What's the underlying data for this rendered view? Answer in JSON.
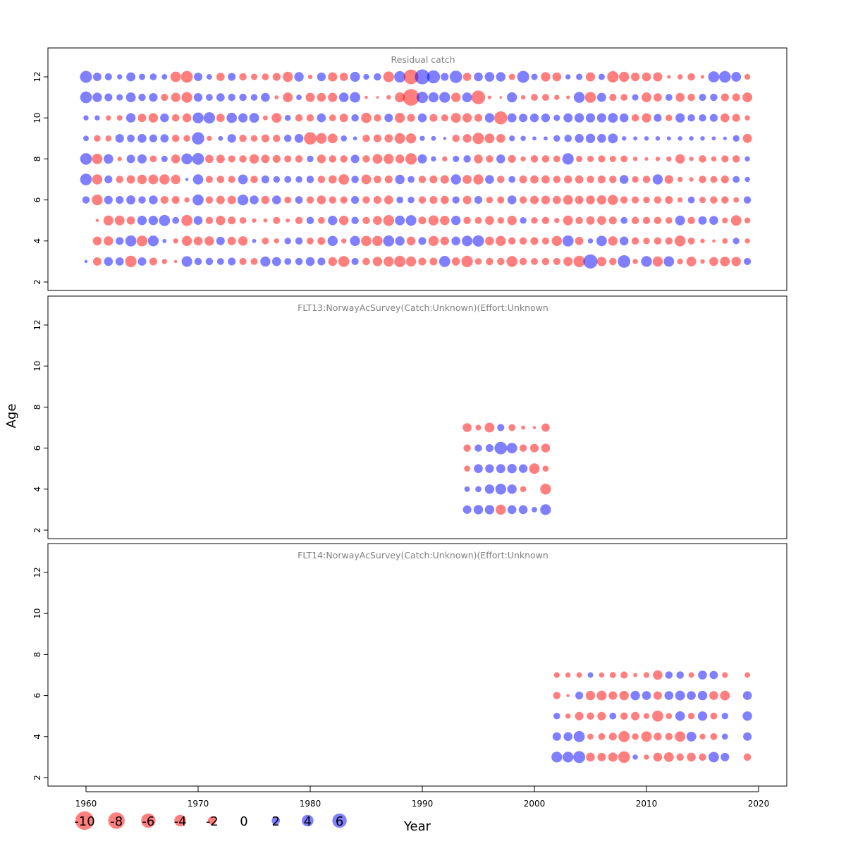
{
  "chart_data": {
    "type": "scatter",
    "xlabel": "Year",
    "ylabel": "Age",
    "xlim": [
      1956.5,
      2022.5
    ],
    "ylim": [
      1.5,
      13.3
    ],
    "xticks": [
      1960,
      1970,
      1980,
      1990,
      2000,
      2010,
      2020
    ],
    "yticks": [
      2,
      4,
      6,
      8,
      10,
      12
    ],
    "colors": {
      "negative": "#ff0000",
      "positive": "#0000ff",
      "opacity": 0.5
    },
    "legend": {
      "position": "bottom-left",
      "values": [
        -10,
        -8,
        -6,
        -4,
        -2,
        0,
        2,
        4,
        6
      ],
      "labels": [
        "-10",
        "-8",
        "-6",
        "-4",
        "-2",
        "0",
        "2",
        "4",
        "6"
      ]
    },
    "panels": [
      {
        "title": "Residual catch",
        "years": [
          1960,
          1961,
          1962,
          1963,
          1964,
          1965,
          1966,
          1967,
          1968,
          1969,
          1970,
          1971,
          1972,
          1973,
          1974,
          1975,
          1976,
          1977,
          1978,
          1979,
          1980,
          1981,
          1982,
          1983,
          1984,
          1985,
          1986,
          1987,
          1988,
          1989,
          1990,
          1991,
          1992,
          1993,
          1994,
          1995,
          1996,
          1997,
          1998,
          1999,
          2000,
          2001,
          2002,
          2003,
          2004,
          2005,
          2006,
          2007,
          2008,
          2009,
          2010,
          2011,
          2012,
          2013,
          2014,
          2015,
          2016,
          2017,
          2018,
          2019
        ],
        "rows": [
          {
            "age": 12,
            "residuals": [
              4.2,
              2.1,
              1.5,
              0.8,
              2.4,
              1.2,
              1.4,
              0.9,
              -3.2,
              -4.1,
              2.1,
              0.9,
              -2.0,
              1.8,
              -1.6,
              -1.2,
              -1.4,
              -1.8,
              -3.0,
              2.6,
              -0.6,
              2.2,
              -2.5,
              -2.0,
              2.9,
              1.0,
              1.6,
              -3.4,
              3.8,
              -6.3,
              6.5,
              5.0,
              1.8,
              4.5,
              -2.0,
              2.3,
              2.7,
              2.6,
              -1.2,
              4.2,
              1.2,
              -2.6,
              -2.3,
              0.8,
              1.2,
              -2.5,
              1.2,
              -3.8,
              -3.0,
              -2.2,
              -2.3,
              -2.5,
              -0.4,
              -0.8,
              -1.6,
              -0.4,
              3.6,
              4.0,
              2.8,
              -1.0
            ]
          },
          {
            "age": 11,
            "residuals": [
              4.0,
              2.6,
              1.8,
              1.2,
              2.8,
              1.6,
              2.2,
              -1.5,
              -2.5,
              -3.4,
              2.2,
              1.4,
              2.0,
              1.6,
              1.6,
              1.3,
              2.3,
              -0.5,
              -2.8,
              0.9,
              -2.5,
              -2.3,
              -2.5,
              2.7,
              3.2,
              -0.3,
              -0.2,
              -0.6,
              -2.9,
              -8.0,
              3.8,
              3.0,
              3.4,
              -2.6,
              2.8,
              -5.5,
              -0.4,
              -0.2,
              3.0,
              -0.6,
              -1.4,
              -1.4,
              -0.8,
              -0.4,
              3.5,
              -3.5,
              2.4,
              -1.5,
              -1.4,
              1.2,
              -2.8,
              -2.0,
              1.4,
              -2.3,
              -1.6,
              1.5,
              1.6,
              -1.8,
              -1.8,
              -2.8
            ]
          },
          {
            "age": 10,
            "residuals": [
              0.8,
              0.8,
              -0.8,
              -0.9,
              2.6,
              -2.1,
              -2.6,
              2.2,
              -1.6,
              -2.3,
              3.5,
              3.8,
              -2.0,
              3.1,
              2.5,
              2.8,
              -0.7,
              -2.8,
              1.1,
              -1.6,
              -1.6,
              2.3,
              -1.4,
              -2.1,
              1.6,
              -3.1,
              -1.6,
              2.1,
              -3.0,
              -1.8,
              2.3,
              -1.8,
              -1.5,
              -2.8,
              -2.5,
              -1.8,
              2.6,
              -5.0,
              2.4,
              2.1,
              2.2,
              2.2,
              1.2,
              2.4,
              2.6,
              2.5,
              2.5,
              2.8,
              2.3,
              -1.6,
              -2.5,
              1.8,
              -1.3,
              2.5,
              1.6,
              1.6,
              1.8,
              -2.3,
              -1.8,
              -0.8
            ]
          },
          {
            "age": 9,
            "residuals": [
              0.9,
              -1.3,
              -1.1,
              2.2,
              1.7,
              2.3,
              1.8,
              2.0,
              -1.6,
              -1.3,
              4.5,
              -0.8,
              0.7,
              2.2,
              -1.6,
              -1.3,
              -1.8,
              -1.6,
              1.6,
              2.3,
              -4.5,
              -3.3,
              -2.8,
              1.1,
              0.5,
              -1.6,
              -1.8,
              -2.0,
              -3.3,
              -3.0,
              0.8,
              0.7,
              0.3,
              -1.6,
              -2.2,
              -3.8,
              -2.8,
              -2.3,
              1.0,
              0.8,
              0.5,
              0.5,
              1.3,
              1.6,
              2.3,
              2.6,
              2.3,
              2.8,
              0.6,
              0.5,
              0.6,
              0.6,
              0.5,
              0.6,
              0.6,
              0.6,
              0.5,
              0.4,
              1.3,
              -2.4
            ]
          },
          {
            "age": 8,
            "residuals": [
              4.0,
              -3.2,
              2.7,
              -0.6,
              2.1,
              2.5,
              -1.4,
              1.2,
              -2.3,
              3.5,
              4.1,
              -2.0,
              -2.1,
              -1.5,
              -1.6,
              -2.6,
              -2.1,
              -1.8,
              -1.5,
              -1.6,
              1.3,
              -2.2,
              -1.6,
              -1.6,
              2.1,
              -1.6,
              -2.8,
              -3.0,
              -2.3,
              -3.8,
              2.5,
              0.8,
              -0.8,
              1.2,
              1.6,
              -2.3,
              -1.6,
              2.3,
              -1.8,
              -0.8,
              -1.6,
              -1.6,
              -1.4,
              3.8,
              -1.2,
              -1.2,
              -1.5,
              -1.2,
              -1.4,
              -0.6,
              -0.4,
              -0.6,
              -0.8,
              -2.6,
              -0.6,
              -1.6,
              -0.8,
              -1.5,
              -1.6,
              0.8
            ]
          },
          {
            "age": 7,
            "residuals": [
              4.0,
              -3.0,
              1.8,
              -1.6,
              -2.1,
              -2.6,
              -2.8,
              -3.0,
              -2.6,
              0.3,
              3.1,
              -1.5,
              -1.6,
              -1.5,
              2.8,
              -1.6,
              1.8,
              1.3,
              1.4,
              1.3,
              1.6,
              -1.6,
              -2.0,
              -3.2,
              1.6,
              -2.8,
              -1.7,
              -1.8,
              2.6,
              1.4,
              -1.6,
              -1.8,
              -2.1,
              3.0,
              -2.4,
              -3.0,
              2.3,
              -1.6,
              1.4,
              -1.8,
              -2.0,
              -2.0,
              -1.6,
              -1.9,
              -2.0,
              -1.6,
              -1.8,
              -1.6,
              2.3,
              -1.3,
              -1.6,
              3.0,
              -2.2,
              -0.8,
              -0.6,
              -1.6,
              -1.4,
              -1.8,
              1.4,
              0.8
            ]
          },
          {
            "age": 6,
            "residuals": [
              1.6,
              -3.4,
              2.1,
              1.8,
              2.4,
              1.6,
              2.3,
              -1.8,
              -1.8,
              -0.8,
              3.6,
              -1.6,
              -2.1,
              -2.1,
              3.4,
              2.3,
              -2.0,
              2.3,
              -1.4,
              1.7,
              -1.6,
              -2.3,
              -1.6,
              -1.6,
              1.8,
              -1.6,
              -1.8,
              -2.3,
              1.4,
              1.3,
              -1.6,
              -1.8,
              -2.0,
              1.6,
              -2.1,
              1.8,
              -1.3,
              -1.5,
              2.3,
              -1.6,
              -2.1,
              -2.2,
              -2.0,
              -2.8,
              -2.1,
              -2.3,
              -2.5,
              -3.0,
              -1.6,
              -1.5,
              -1.3,
              -1.6,
              -1.8,
              -0.8,
              1.4,
              -1.2,
              -1.6,
              -1.6,
              -0.9,
              1.6
            ]
          },
          {
            "age": 5,
            "residuals": [
              0.0,
              -0.3,
              -2.9,
              -2.8,
              -2.0,
              2.6,
              2.6,
              3.6,
              1.4,
              -3.6,
              2.3,
              -1.6,
              -2.6,
              -1.8,
              -1.3,
              -0.6,
              -0.5,
              -1.5,
              -0.5,
              -1.6,
              1.6,
              -1.4,
              2.6,
              -2.6,
              1.6,
              -1.6,
              -2.3,
              -3.5,
              2.8,
              3.3,
              -1.8,
              -3.0,
              -2.6,
              2.6,
              -1.6,
              -1.4,
              -2.3,
              -1.3,
              -2.6,
              1.3,
              -1.3,
              -1.6,
              -0.8,
              -2.8,
              -1.6,
              -2.1,
              -2.3,
              -1.8,
              1.4,
              -1.6,
              -1.6,
              -1.6,
              -1.3,
              2.8,
              -1.6,
              2.1,
              2.3,
              -1.0,
              -3.2,
              -1.0
            ]
          },
          {
            "age": 4,
            "residuals": [
              0.0,
              -2.3,
              -2.6,
              1.8,
              3.6,
              -3.4,
              3.4,
              0.5,
              -0.8,
              -3.0,
              -2.3,
              -2.6,
              2.1,
              -2.1,
              -2.6,
              0.5,
              -1.4,
              -0.8,
              1.3,
              1.6,
              -1.4,
              -1.8,
              3.0,
              -0.8,
              3.0,
              -3.1,
              -3.1,
              3.6,
              2.6,
              -2.3,
              1.8,
              -3.0,
              -2.2,
              2.3,
              3.3,
              3.8,
              -2.3,
              -3.0,
              -1.6,
              -1.6,
              -1.8,
              -1.5,
              -3.0,
              3.6,
              -2.0,
              0.8,
              3.2,
              -2.6,
              2.3,
              -1.6,
              -1.3,
              -1.6,
              -1.6,
              -3.5,
              -1.4,
              -0.6,
              -0.3,
              -0.9,
              1.3,
              -0.8
            ]
          },
          {
            "age": 3,
            "residuals": [
              0.3,
              -2.1,
              2.3,
              2.0,
              -3.8,
              2.1,
              -1.8,
              -0.8,
              -0.3,
              3.3,
              1.6,
              1.6,
              1.4,
              1.8,
              -1.5,
              -1.4,
              3.0,
              2.4,
              1.4,
              1.6,
              2.3,
              1.8,
              -2.3,
              -3.5,
              1.5,
              -1.6,
              -2.6,
              -3.0,
              -3.8,
              -3.0,
              -1.8,
              -1.8,
              3.6,
              -2.0,
              -3.8,
              -1.3,
              -1.6,
              -1.6,
              -3.5,
              -1.6,
              -1.4,
              -1.6,
              -1.5,
              -2.5,
              -3.8,
              5.8,
              -2.6,
              -1.6,
              4.6,
              -0.8,
              3.4,
              -3.0,
              3.2,
              -1.0,
              -2.8,
              -0.6,
              -2.3,
              -2.8,
              -2.6,
              1.5
            ]
          }
        ]
      },
      {
        "title": "FLT13:NorwayAcSurvey(Catch:Unknown)(Effort:Unknown",
        "years": [
          1994,
          1995,
          1996,
          1997,
          1998,
          1999,
          2000,
          2001
        ],
        "rows": [
          {
            "age": 7,
            "residuals": [
              -2.3,
              -1.0,
              -2.8,
              1.5,
              -1.4,
              -0.5,
              -0.3,
              -2.0
            ]
          },
          {
            "age": 6,
            "residuals": [
              -1.6,
              1.6,
              1.8,
              4.6,
              3.2,
              -1.6,
              -2.1,
              -2.3
            ]
          },
          {
            "age": 5,
            "residuals": [
              -1.1,
              2.3,
              2.2,
              2.4,
              2.6,
              2.2,
              -3.2,
              -1.1
            ]
          },
          {
            "age": 4,
            "residuals": [
              0.9,
              1.1,
              2.6,
              3.4,
              2.6,
              -1.1,
              0.0,
              -3.4
            ]
          },
          {
            "age": 3,
            "residuals": [
              2.1,
              2.6,
              2.6,
              -3.0,
              2.3,
              2.3,
              0.9,
              3.4
            ]
          }
        ]
      },
      {
        "title": "FLT14:NorwayAcSurvey(Catch:Unknown)(Effort:Unknown",
        "years": [
          2002,
          2003,
          2004,
          2005,
          2006,
          2007,
          2008,
          2009,
          2010,
          2011,
          2012,
          2013,
          2014,
          2015,
          2016,
          2017,
          2018,
          2019
        ],
        "rows": [
          {
            "age": 7,
            "residuals": [
              -1.0,
              -0.8,
              -0.9,
              0.9,
              -0.8,
              -1.1,
              -1.5,
              -0.5,
              -1.0,
              -2.6,
              1.6,
              1.6,
              -0.9,
              2.3,
              2.0,
              -1.0,
              0.0,
              -0.9
            ]
          },
          {
            "age": 6,
            "residuals": [
              -1.6,
              -0.3,
              1.8,
              -2.6,
              -2.8,
              -2.1,
              -2.6,
              2.6,
              2.3,
              -2.1,
              2.3,
              2.8,
              2.3,
              2.6,
              -2.3,
              -2.8,
              0.0,
              2.3
            ]
          },
          {
            "age": 5,
            "residuals": [
              1.3,
              -0.8,
              -2.1,
              -1.6,
              -2.1,
              1.4,
              -1.6,
              -2.1,
              -1.0,
              -3.6,
              -1.1,
              2.7,
              -1.3,
              2.6,
              -1.4,
              1.3,
              0.0,
              2.6
            ]
          },
          {
            "age": 4,
            "residuals": [
              2.1,
              2.3,
              3.6,
              -1.1,
              -1.4,
              -1.8,
              -3.6,
              -1.3,
              -3.2,
              -1.8,
              -1.6,
              -3.2,
              2.8,
              -1.0,
              -1.4,
              1.1,
              0.0,
              2.1
            ]
          },
          {
            "age": 3,
            "residuals": [
              3.4,
              3.4,
              4.2,
              -2.3,
              -2.1,
              -2.5,
              -4.0,
              0.8,
              -0.8,
              -2.3,
              -2.8,
              -1.6,
              -2.3,
              -1.6,
              3.2,
              2.1,
              0.0,
              -1.6
            ]
          }
        ]
      }
    ]
  }
}
